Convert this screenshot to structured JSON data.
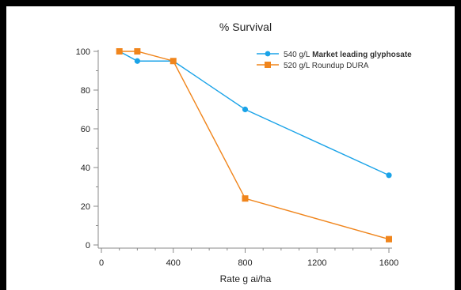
{
  "chart_data": {
    "type": "line",
    "title": "% Survival",
    "xlabel": "Rate g ai/ha",
    "ylabel": "",
    "xlim": [
      0,
      1600
    ],
    "ylim": [
      0,
      100
    ],
    "x_ticks": [
      0,
      400,
      800,
      1200,
      1600
    ],
    "y_ticks": [
      0,
      20,
      40,
      60,
      80,
      100
    ],
    "legend_position": "top-right",
    "series": [
      {
        "name_prefix": "540 g/L",
        "name_emphasis": "Market leading glyphosate",
        "color": "#1aa3e8",
        "marker": "circle",
        "x": [
          100,
          200,
          400,
          800,
          1600
        ],
        "y": [
          100,
          95,
          95,
          70,
          36
        ]
      },
      {
        "name_prefix": "520 g/L Roundup DURA",
        "name_emphasis": "",
        "color": "#f0851c",
        "marker": "square",
        "x": [
          100,
          200,
          400,
          800,
          1600
        ],
        "y": [
          100,
          100,
          95,
          24,
          3
        ]
      }
    ]
  }
}
